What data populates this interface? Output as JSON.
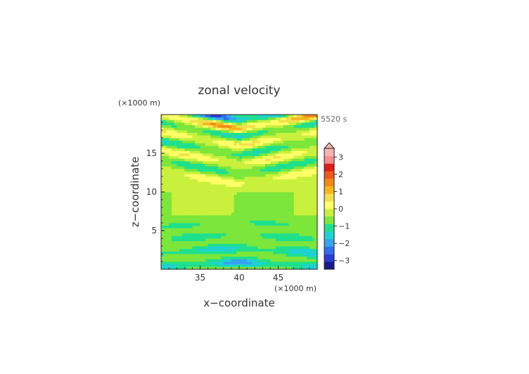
{
  "chart_data": {
    "type": "heatmap",
    "title": "zonal velocity",
    "xlabel": "x−coordinate",
    "ylabel": "z−coordinate",
    "x_unit": "(×1000 m)",
    "y_unit": "(×1000 m)",
    "time_label": "5520 s",
    "xlim": [
      30,
      50
    ],
    "ylim": [
      0,
      20
    ],
    "xticks": [
      35,
      40,
      45
    ],
    "yticks": [
      5,
      10,
      15
    ],
    "colorbar": {
      "min": -3.5,
      "max": 3.5,
      "step": 0.5,
      "ticks": [
        -3,
        -2,
        -1,
        0,
        1,
        2,
        3
      ],
      "extend": "max",
      "colors": [
        "#1a1a8c",
        "#2a3cd6",
        "#2f6ef0",
        "#35a3ee",
        "#1fd2cf",
        "#1fe08c",
        "#7ce63a",
        "#c8f03c",
        "#ffff66",
        "#f2e04a",
        "#f6b51e",
        "#f08a1a",
        "#ef5a1a",
        "#e41a1a",
        "#f28e8e",
        "#f7b2b2"
      ]
    },
    "field": {
      "description": "contoured zonal velocity over x (30–50 km) and z (0–20 km); wave bands tilt upward away from x=40",
      "bands": [
        {
          "z": 1.0,
          "amp": -1.6
        },
        {
          "z": 2.8,
          "amp": -1.3
        },
        {
          "z": 4.6,
          "amp": -0.8
        },
        {
          "z": 6.2,
          "amp": -0.6
        },
        {
          "z": 11.0,
          "amp": 0.9
        },
        {
          "z": 12.3,
          "amp": -0.9
        },
        {
          "z": 13.6,
          "amp": 1.0
        },
        {
          "z": 14.8,
          "amp": -1.0
        },
        {
          "z": 16.0,
          "amp": 1.1
        },
        {
          "z": 17.2,
          "amp": -1.2
        },
        {
          "z": 18.2,
          "amp": 2.2
        },
        {
          "z": 19.3,
          "amp": -2.6
        }
      ]
    }
  }
}
